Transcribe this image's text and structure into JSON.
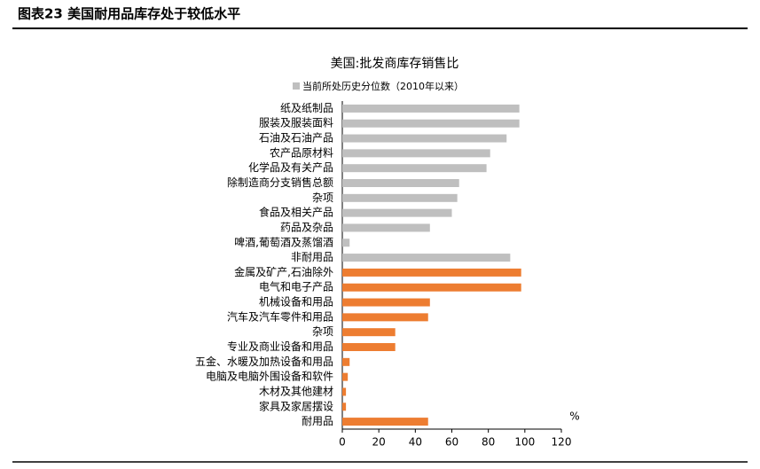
{
  "header": {
    "title": "图表23   美国耐用品库存处于较低水平"
  },
  "chart_data": {
    "type": "hbar",
    "title": "美国:批发商库存销售比",
    "legend_label": "当前所处历史分位数（2010年以来）",
    "legend_color": "#bfbfbf",
    "unit": "%",
    "categories": [
      "纸及纸制品",
      "服装及服装面料",
      "石油及石油产品",
      "农产品原材料",
      "化学品及有关产品",
      "除制造商分支销售总额",
      "杂项",
      "食品及相关产品",
      "药品及杂品",
      "啤酒,葡萄酒及蒸馏酒",
      "非耐用品",
      "金属及矿产,石油除外",
      "电气和电子产品",
      "机械设备和用品",
      "汽车及汽车零件和用品",
      "杂项",
      "专业及商业设备和用品",
      "五金、水暖及加热设备和用品",
      "电脑及电脑外围设备和软件",
      "木材及其他建材",
      "家具及家居摆设",
      "耐用品"
    ],
    "values": [
      97,
      97,
      90,
      81,
      79,
      64,
      63,
      60,
      48,
      4,
      92,
      98,
      98,
      48,
      47,
      29,
      29,
      4,
      3,
      2,
      2,
      47
    ],
    "colors": [
      "#bfbfbf",
      "#bfbfbf",
      "#bfbfbf",
      "#bfbfbf",
      "#bfbfbf",
      "#bfbfbf",
      "#bfbfbf",
      "#bfbfbf",
      "#bfbfbf",
      "#bfbfbf",
      "#bfbfbf",
      "#ed7d31",
      "#ed7d31",
      "#ed7d31",
      "#ed7d31",
      "#ed7d31",
      "#ed7d31",
      "#ed7d31",
      "#ed7d31",
      "#ed7d31",
      "#ed7d31",
      "#ed7d31"
    ],
    "xlim": [
      0,
      120
    ],
    "xticks": [
      0,
      20,
      40,
      60,
      80,
      100,
      120
    ],
    "grid": false
  }
}
